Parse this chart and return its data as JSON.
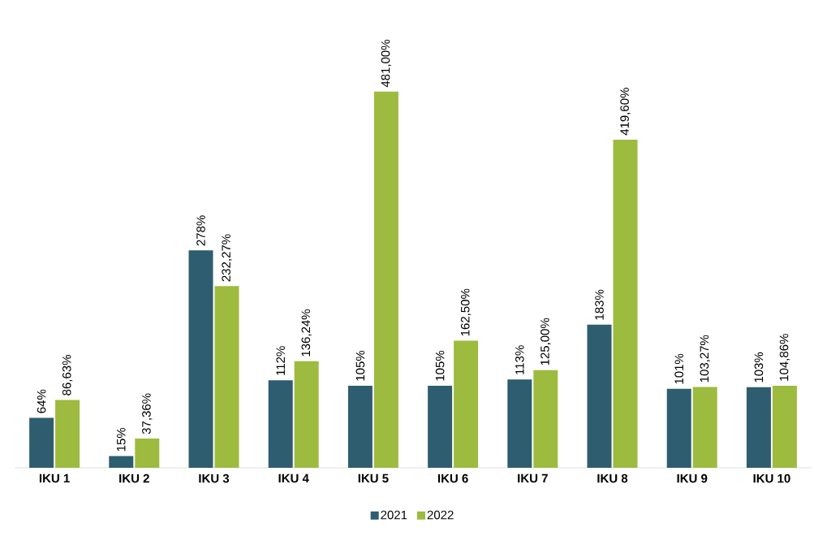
{
  "chart_data": {
    "type": "bar",
    "categories": [
      "IKU 1",
      "IKU 2",
      "IKU 3",
      "IKU 4",
      "IKU 5",
      "IKU 6",
      "IKU 7",
      "IKU 8",
      "IKU 9",
      "IKU 10"
    ],
    "series": [
      {
        "name": "2021",
        "color": "#2e5d70",
        "values": [
          64,
          15,
          278,
          112,
          105,
          105,
          113,
          183,
          101,
          103
        ],
        "value_labels": [
          "64%",
          "15%",
          "278%",
          "112%",
          "105%",
          "105%",
          "113%",
          "183%",
          "101%",
          "103%"
        ]
      },
      {
        "name": "2022",
        "color": "#9dbb3e",
        "values": [
          86.63,
          37.36,
          232.27,
          136.24,
          481.0,
          162.5,
          125.0,
          419.6,
          103.27,
          104.86
        ],
        "value_labels": [
          "86,63%",
          "37,36%",
          "232,27%",
          "136,24%",
          "481,00%",
          "162,50%",
          "125,00%",
          "419,60%",
          "103,27%",
          "104,86%"
        ]
      }
    ],
    "legend": "bottom"
  }
}
